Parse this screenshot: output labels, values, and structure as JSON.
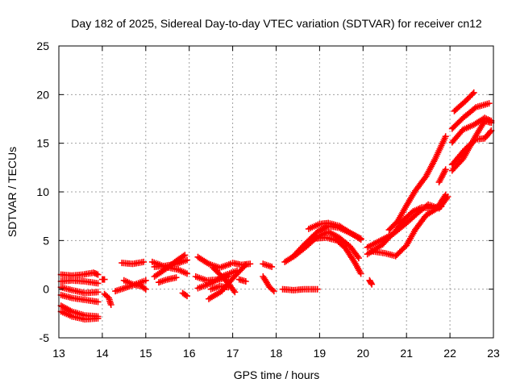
{
  "chart_data": {
    "type": "scatter",
    "title": "Day 182 of 2025, Sidereal Day-to-day VTEC variation (SDTVAR) for receiver cn12",
    "xlabel": "GPS time / hours",
    "ylabel": "SDTVAR / TECUs",
    "xlim": [
      13,
      23
    ],
    "ylim": [
      -5,
      25
    ],
    "x_ticks": [
      13,
      14,
      15,
      16,
      17,
      18,
      19,
      20,
      21,
      22,
      23
    ],
    "y_ticks": [
      -5,
      0,
      5,
      10,
      15,
      20,
      25
    ],
    "x_tick_labels": [
      "13",
      "14",
      "15",
      "16",
      "17",
      "18",
      "19",
      "20",
      "21",
      "22",
      "23"
    ],
    "y_tick_labels": [
      "-5",
      "0",
      "5",
      "10",
      "15",
      "20",
      "25"
    ],
    "grid": true,
    "marker": "+",
    "marker_color": "#ff0000",
    "series": [
      {
        "name": "trace-1",
        "points": [
          [
            13.05,
            1.5
          ],
          [
            13.3,
            1.4
          ],
          [
            13.55,
            1.5
          ],
          [
            13.8,
            1.7
          ],
          [
            13.9,
            1.5
          ]
        ]
      },
      {
        "name": "trace-2",
        "points": [
          [
            13.05,
            0.8
          ],
          [
            13.3,
            0.9
          ],
          [
            13.6,
            0.8
          ],
          [
            13.9,
            0.6
          ]
        ]
      },
      {
        "name": "trace-3",
        "points": [
          [
            13.05,
            0.2
          ],
          [
            13.3,
            -0.1
          ],
          [
            13.6,
            -0.4
          ],
          [
            13.9,
            -0.3
          ]
        ]
      },
      {
        "name": "trace-4",
        "points": [
          [
            13.05,
            -0.6
          ],
          [
            13.3,
            -0.9
          ],
          [
            13.6,
            -1.1
          ],
          [
            13.9,
            -1.3
          ]
        ]
      },
      {
        "name": "trace-5",
        "points": [
          [
            13.05,
            -1.7
          ],
          [
            13.3,
            -2.3
          ],
          [
            13.6,
            -2.7
          ],
          [
            13.9,
            -2.8
          ]
        ]
      },
      {
        "name": "trace-6",
        "points": [
          [
            13.05,
            -2.3
          ],
          [
            13.3,
            -2.8
          ],
          [
            13.6,
            -3.1
          ],
          [
            13.9,
            -3.0
          ]
        ]
      },
      {
        "name": "trace-7",
        "points": [
          [
            14.0,
            1.0
          ],
          [
            14.05,
            1.0
          ]
        ]
      },
      {
        "name": "trace-8",
        "points": [
          [
            14.05,
            -0.5
          ],
          [
            14.15,
            -0.9
          ],
          [
            14.2,
            -1.6
          ]
        ]
      },
      {
        "name": "trace-9",
        "points": [
          [
            14.3,
            -0.2
          ],
          [
            14.5,
            0.1
          ],
          [
            14.7,
            0.4
          ],
          [
            15.0,
            0.9
          ]
        ]
      },
      {
        "name": "trace-10",
        "points": [
          [
            14.5,
            0.9
          ],
          [
            14.7,
            0.5
          ],
          [
            14.9,
            0.3
          ],
          [
            15.0,
            0.0
          ]
        ]
      },
      {
        "name": "trace-11",
        "points": [
          [
            14.45,
            2.7
          ],
          [
            14.7,
            2.6
          ],
          [
            14.95,
            2.8
          ]
        ]
      },
      {
        "name": "trace-12",
        "points": [
          [
            15.2,
            1.3
          ],
          [
            15.5,
            2.2
          ],
          [
            15.7,
            2.9
          ],
          [
            15.9,
            3.5
          ]
        ]
      },
      {
        "name": "trace-13",
        "points": [
          [
            15.2,
            2.3
          ],
          [
            15.45,
            2.4
          ],
          [
            15.7,
            2.6
          ],
          [
            15.95,
            3.0
          ]
        ]
      },
      {
        "name": "trace-14",
        "points": [
          [
            15.15,
            2.8
          ],
          [
            15.45,
            2.3
          ],
          [
            15.75,
            2.0
          ],
          [
            15.95,
            1.6
          ]
        ]
      },
      {
        "name": "trace-15",
        "points": [
          [
            15.3,
            0.7
          ],
          [
            15.5,
            1.0
          ],
          [
            15.7,
            1.2
          ]
        ]
      },
      {
        "name": "trace-16",
        "points": [
          [
            15.85,
            -0.4
          ],
          [
            15.95,
            -0.7
          ]
        ]
      },
      {
        "name": "trace-17",
        "points": [
          [
            16.2,
            3.3
          ],
          [
            16.45,
            2.6
          ],
          [
            16.7,
            2.2
          ],
          [
            16.95,
            2.6
          ]
        ]
      },
      {
        "name": "trace-18",
        "points": [
          [
            16.15,
            1.3
          ],
          [
            16.4,
            0.9
          ],
          [
            16.7,
            1.0
          ],
          [
            16.9,
            1.3
          ]
        ]
      },
      {
        "name": "trace-19",
        "points": [
          [
            16.2,
            0.1
          ],
          [
            16.5,
            0.6
          ],
          [
            16.8,
            1.4
          ],
          [
            17.1,
            1.9
          ]
        ]
      },
      {
        "name": "trace-20",
        "points": [
          [
            16.45,
            -1.0
          ],
          [
            16.75,
            -0.2
          ],
          [
            17.0,
            1.1
          ],
          [
            17.3,
            2.5
          ]
        ]
      },
      {
        "name": "trace-21",
        "points": [
          [
            16.55,
            2.2
          ],
          [
            16.8,
            1.1
          ],
          [
            16.95,
            0.3
          ],
          [
            17.05,
            -0.3
          ]
        ]
      },
      {
        "name": "trace-22",
        "points": [
          [
            16.5,
            0.0
          ],
          [
            16.7,
            0.3
          ],
          [
            16.9,
            0.2
          ]
        ]
      },
      {
        "name": "trace-23",
        "points": [
          [
            17.0,
            2.7
          ],
          [
            17.2,
            2.5
          ],
          [
            17.4,
            2.6
          ]
        ]
      },
      {
        "name": "trace-24",
        "points": [
          [
            17.15,
            1.0
          ],
          [
            17.3,
            0.8
          ]
        ]
      },
      {
        "name": "trace-25",
        "points": [
          [
            17.7,
            2.6
          ],
          [
            17.9,
            2.3
          ]
        ]
      },
      {
        "name": "trace-26",
        "points": [
          [
            17.7,
            1.3
          ],
          [
            17.85,
            0.2
          ],
          [
            17.95,
            -0.2
          ]
        ]
      },
      {
        "name": "trace-27",
        "points": [
          [
            18.2,
            2.8
          ],
          [
            18.45,
            3.5
          ],
          [
            18.7,
            4.4
          ],
          [
            18.95,
            5.4
          ],
          [
            19.2,
            5.9
          ],
          [
            19.45,
            5.3
          ],
          [
            19.7,
            4.4
          ],
          [
            19.9,
            3.2
          ]
        ]
      },
      {
        "name": "trace-28",
        "points": [
          [
            18.4,
            3.4
          ],
          [
            18.65,
            4.6
          ],
          [
            18.95,
            5.9
          ],
          [
            19.2,
            6.5
          ],
          [
            19.45,
            6.3
          ],
          [
            19.7,
            5.8
          ],
          [
            19.95,
            5.1
          ]
        ]
      },
      {
        "name": "trace-29",
        "points": [
          [
            18.75,
            6.2
          ],
          [
            19.0,
            6.7
          ],
          [
            19.2,
            6.8
          ],
          [
            19.45,
            6.5
          ],
          [
            19.7,
            5.8
          ],
          [
            19.95,
            5.2
          ]
        ]
      },
      {
        "name": "trace-30",
        "points": [
          [
            18.9,
            5.2
          ],
          [
            19.15,
            5.3
          ],
          [
            19.4,
            5.0
          ],
          [
            19.6,
            4.2
          ],
          [
            19.8,
            2.8
          ],
          [
            19.95,
            1.6
          ]
        ]
      },
      {
        "name": "trace-31",
        "points": [
          [
            18.15,
            0.0
          ],
          [
            18.4,
            -0.1
          ],
          [
            18.65,
            0.0
          ],
          [
            18.95,
            0.0
          ]
        ]
      },
      {
        "name": "trace-32",
        "points": [
          [
            20.15,
            0.9
          ],
          [
            20.2,
            0.5
          ]
        ]
      },
      {
        "name": "trace-33",
        "points": [
          [
            20.1,
            4.3
          ],
          [
            20.4,
            5.0
          ],
          [
            20.7,
            5.7
          ],
          [
            21.0,
            6.8
          ],
          [
            21.25,
            7.8
          ],
          [
            21.5,
            8.7
          ],
          [
            21.75,
            8.3
          ],
          [
            21.95,
            9.5
          ]
        ]
      },
      {
        "name": "trace-34",
        "points": [
          [
            20.1,
            3.6
          ],
          [
            20.45,
            4.6
          ],
          [
            20.75,
            6.0
          ],
          [
            20.95,
            7.2
          ],
          [
            21.15,
            8.0
          ],
          [
            21.35,
            8.4
          ],
          [
            21.6,
            8.3
          ],
          [
            21.8,
            8.5
          ]
        ]
      },
      {
        "name": "trace-35",
        "points": [
          [
            20.2,
            3.9
          ],
          [
            20.5,
            3.7
          ],
          [
            20.75,
            3.4
          ],
          [
            21.0,
            4.5
          ],
          [
            21.2,
            6.1
          ],
          [
            21.45,
            7.6
          ],
          [
            21.7,
            8.3
          ],
          [
            21.9,
            9.7
          ]
        ]
      },
      {
        "name": "trace-36",
        "points": [
          [
            20.6,
            6.1
          ],
          [
            20.8,
            7.0
          ],
          [
            21.0,
            8.6
          ],
          [
            21.2,
            10.1
          ],
          [
            21.45,
            11.6
          ],
          [
            21.65,
            13.3
          ],
          [
            21.9,
            15.7
          ]
        ]
      },
      {
        "name": "trace-37",
        "points": [
          [
            21.75,
            11.0
          ],
          [
            21.9,
            12.3
          ]
        ]
      },
      {
        "name": "trace-38",
        "points": [
          [
            22.05,
            16.5
          ],
          [
            22.3,
            17.6
          ],
          [
            22.6,
            18.7
          ],
          [
            22.9,
            19.1
          ]
        ]
      },
      {
        "name": "trace-39",
        "points": [
          [
            22.1,
            18.3
          ],
          [
            22.35,
            19.3
          ],
          [
            22.55,
            20.2
          ]
        ]
      },
      {
        "name": "trace-40",
        "points": [
          [
            22.05,
            15.1
          ],
          [
            22.3,
            16.4
          ],
          [
            22.55,
            16.9
          ],
          [
            22.8,
            17.6
          ],
          [
            22.95,
            17.3
          ]
        ]
      },
      {
        "name": "trace-41",
        "points": [
          [
            22.05,
            12.8
          ],
          [
            22.35,
            14.4
          ],
          [
            22.6,
            15.4
          ],
          [
            22.8,
            15.5
          ],
          [
            22.95,
            16.3
          ]
        ]
      },
      {
        "name": "trace-42",
        "points": [
          [
            22.05,
            12.2
          ],
          [
            22.3,
            13.4
          ],
          [
            22.6,
            15.8
          ],
          [
            22.8,
            17.3
          ],
          [
            22.95,
            17.1
          ]
        ]
      }
    ]
  }
}
